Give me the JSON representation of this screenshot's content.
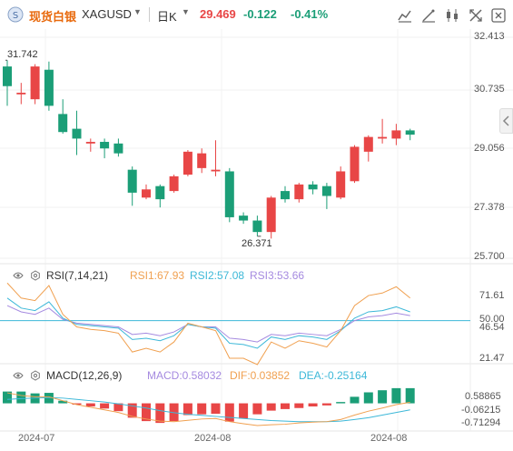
{
  "header": {
    "product": "现货白银",
    "symbol": "XAGUSD",
    "period": "日K",
    "price": "29.469",
    "change": "-0.122",
    "change_pct": "-0.41%",
    "icons": [
      "indicator-icon",
      "draw-icon",
      "candle-type-icon",
      "fullscreen-icon",
      "settings-icon"
    ]
  },
  "colors": {
    "up": "#e84646",
    "down": "#1b9e77",
    "accent": "#e8690c",
    "rsi1": "#f0a050",
    "rsi2": "#3db8d8",
    "rsi3": "#a58ae0"
  },
  "price_axis": {
    "ticks": [
      "32.413",
      "30.735",
      "29.056",
      "27.378",
      "25.700"
    ],
    "high_label": "31.742",
    "low_label": "26.371"
  },
  "rsi": {
    "title": "RSI(7,14,21)",
    "rsi1": "RSI1:67.93",
    "rsi2": "RSI2:57.08",
    "rsi3": "RSI3:53.66",
    "ticks": [
      "71.61",
      "50.00",
      "46.54",
      "21.47"
    ]
  },
  "macd": {
    "title": "MACD(12,26,9)",
    "macd": "MACD:0.58032",
    "dif": "DIF:0.03852",
    "dea": "DEA:-0.25164",
    "ticks": [
      "0.58865",
      "-0.06215",
      "-0.71294"
    ]
  },
  "time_axis": {
    "labels": [
      "2024-07",
      "2024-08",
      "2024-08"
    ]
  },
  "chart_data": {
    "type": "candlestick",
    "ylim": [
      25.7,
      32.413
    ],
    "candles": [
      {
        "o": 31.55,
        "c": 30.95,
        "h": 31.74,
        "l": 30.35
      },
      {
        "o": 30.7,
        "c": 30.75,
        "h": 31.05,
        "l": 30.4
      },
      {
        "o": 30.55,
        "c": 31.55,
        "h": 31.62,
        "l": 30.4
      },
      {
        "o": 31.45,
        "c": 30.35,
        "h": 31.7,
        "l": 30.2
      },
      {
        "o": 30.1,
        "c": 29.55,
        "h": 30.55,
        "l": 29.5
      },
      {
        "o": 29.65,
        "c": 29.35,
        "h": 30.2,
        "l": 28.85
      },
      {
        "o": 29.2,
        "c": 29.25,
        "h": 29.35,
        "l": 28.95
      },
      {
        "o": 29.25,
        "c": 29.05,
        "h": 29.35,
        "l": 28.75
      },
      {
        "o": 29.2,
        "c": 28.9,
        "h": 29.35,
        "l": 28.8
      },
      {
        "o": 28.4,
        "c": 27.7,
        "h": 28.5,
        "l": 27.3
      },
      {
        "o": 27.55,
        "c": 27.8,
        "h": 27.95,
        "l": 27.5
      },
      {
        "o": 27.9,
        "c": 27.5,
        "h": 27.95,
        "l": 27.25
      },
      {
        "o": 27.75,
        "c": 28.2,
        "h": 28.25,
        "l": 27.7
      },
      {
        "o": 28.25,
        "c": 28.95,
        "h": 29.0,
        "l": 28.2
      },
      {
        "o": 28.45,
        "c": 28.9,
        "h": 29.05,
        "l": 28.3
      },
      {
        "o": 28.35,
        "c": 28.4,
        "h": 29.3,
        "l": 28.2
      },
      {
        "o": 28.35,
        "c": 26.95,
        "h": 28.45,
        "l": 26.8
      },
      {
        "o": 27.0,
        "c": 26.85,
        "h": 27.1,
        "l": 26.75
      },
      {
        "o": 26.85,
        "c": 26.5,
        "h": 27.0,
        "l": 26.37
      },
      {
        "o": 26.5,
        "c": 27.55,
        "h": 27.6,
        "l": 26.3
      },
      {
        "o": 27.75,
        "c": 27.5,
        "h": 27.9,
        "l": 27.4
      },
      {
        "o": 27.5,
        "c": 27.95,
        "h": 28.0,
        "l": 27.4
      },
      {
        "o": 27.95,
        "c": 27.8,
        "h": 28.05,
        "l": 27.65
      },
      {
        "o": 27.9,
        "c": 27.6,
        "h": 28.0,
        "l": 27.2
      },
      {
        "o": 27.55,
        "c": 28.35,
        "h": 28.5,
        "l": 27.5
      },
      {
        "o": 28.05,
        "c": 29.1,
        "h": 29.15,
        "l": 28.0
      },
      {
        "o": 28.95,
        "c": 29.4,
        "h": 29.45,
        "l": 28.65
      },
      {
        "o": 29.35,
        "c": 29.4,
        "h": 29.95,
        "l": 29.2
      },
      {
        "o": 29.35,
        "c": 29.6,
        "h": 29.8,
        "l": 29.15
      },
      {
        "o": 29.6,
        "c": 29.47,
        "h": 29.65,
        "l": 29.3
      }
    ],
    "rsi1": [
      80,
      68,
      66,
      78,
      55,
      45,
      43,
      42,
      40,
      25,
      28,
      25,
      33,
      48,
      45,
      42,
      20,
      20,
      15,
      33,
      28,
      34,
      32,
      29,
      42,
      62,
      70,
      72,
      77,
      68
    ],
    "rsi2": [
      68,
      60,
      58,
      65,
      52,
      47,
      46,
      45,
      44,
      35,
      36,
      34,
      38,
      47,
      45,
      44,
      32,
      31,
      28,
      37,
      35,
      38,
      37,
      35,
      42,
      52,
      57,
      58,
      61,
      57
    ],
    "rsi3": [
      62,
      57,
      55,
      60,
      51,
      48,
      47,
      46,
      45,
      39,
      40,
      38,
      41,
      47,
      45,
      45,
      36,
      35,
      33,
      39,
      38,
      40,
      39,
      38,
      43,
      50,
      53,
      54,
      56,
      54
    ],
    "rsi_ylim": [
      21.47,
      78.0
    ],
    "macd_hist": [
      0.45,
      0.45,
      0.38,
      0.4,
      0.1,
      -0.05,
      -0.12,
      -0.2,
      -0.3,
      -0.55,
      -0.68,
      -0.75,
      -0.68,
      -0.45,
      -0.42,
      -0.4,
      -0.7,
      -0.58,
      -0.42,
      -0.28,
      -0.22,
      -0.18,
      -0.12,
      -0.08,
      0.05,
      0.25,
      0.42,
      0.5,
      0.58,
      0.58
    ],
    "dif": [
      0.4,
      0.3,
      0.25,
      0.25,
      0.1,
      -0.05,
      -0.15,
      -0.25,
      -0.35,
      -0.5,
      -0.6,
      -0.68,
      -0.7,
      -0.65,
      -0.6,
      -0.58,
      -0.7,
      -0.78,
      -0.85,
      -0.82,
      -0.8,
      -0.75,
      -0.72,
      -0.7,
      -0.62,
      -0.45,
      -0.3,
      -0.18,
      -0.05,
      0.04
    ],
    "dea": [
      0.15,
      0.18,
      0.2,
      0.22,
      0.2,
      0.15,
      0.1,
      0.05,
      -0.02,
      -0.1,
      -0.18,
      -0.28,
      -0.36,
      -0.42,
      -0.46,
      -0.5,
      -0.54,
      -0.58,
      -0.62,
      -0.66,
      -0.68,
      -0.7,
      -0.7,
      -0.7,
      -0.68,
      -0.62,
      -0.55,
      -0.45,
      -0.35,
      -0.25
    ],
    "macd_ylim": [
      -0.85,
      0.75
    ]
  }
}
